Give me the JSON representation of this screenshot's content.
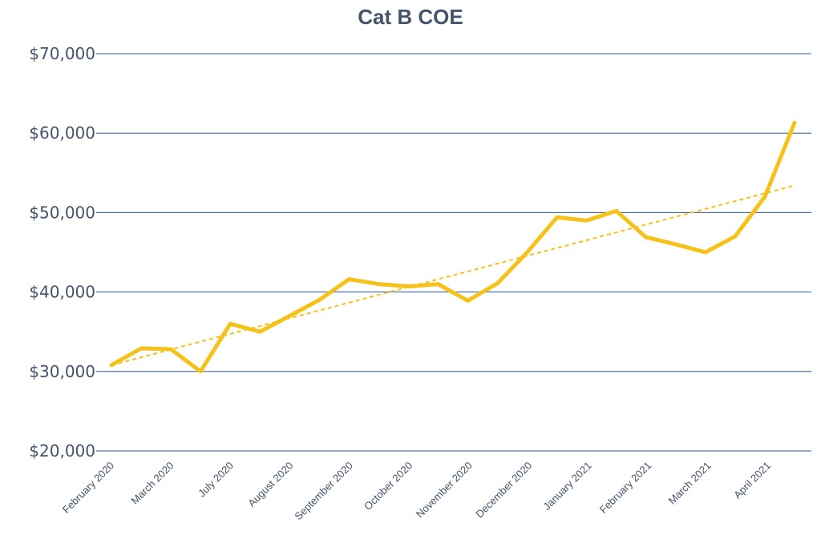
{
  "chart_data": {
    "type": "line",
    "title": "Cat B COE",
    "xlabel": "",
    "ylabel": "",
    "ylim": [
      20000,
      70000
    ],
    "yticks": [
      20000,
      30000,
      40000,
      50000,
      60000,
      70000
    ],
    "ytick_labels": [
      "$20,000",
      "$30,000",
      "$40,000",
      "$50,000",
      "$60,000",
      "$70,000"
    ],
    "grid": true,
    "legend": "none",
    "colors": {
      "series": "#F5C11B",
      "trend": "#F5C11B",
      "grid": "#2F5496",
      "text": "#44546A"
    },
    "x_tick_labels": [
      "February 2020",
      "March 2020",
      "July 2020",
      "August 2020",
      "September 2020",
      "October 2020",
      "November 2020",
      "December 2020",
      "January 2021",
      "February 2021",
      "March 2021",
      "April 2021"
    ],
    "series": [
      {
        "values": [
          30800,
          32900,
          32800,
          30000,
          36000,
          35000,
          37000,
          39000,
          41600,
          41000,
          40700,
          41000,
          38900,
          41100,
          45000,
          49400,
          49000,
          50200,
          46900,
          46000,
          45000,
          47000,
          52000,
          61300
        ]
      }
    ],
    "trendline": {
      "type": "linear",
      "style": "dashed",
      "start": 30800,
      "end": 53400
    }
  }
}
